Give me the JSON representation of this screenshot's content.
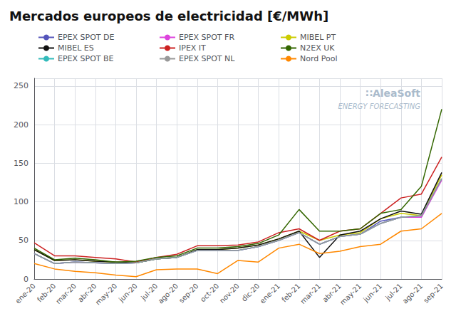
{
  "chart_data": {
    "type": "line",
    "title": "Mercados europeos de electricidad [€/MWh]",
    "categories": [
      "ene-20",
      "feb-20",
      "mar-20",
      "abr-20",
      "may-20",
      "jun-20",
      "jul-20",
      "ago-20",
      "sep-20",
      "oct-20",
      "nov-20",
      "dic-20",
      "ene-21",
      "feb-21",
      "mar-21",
      "abr-21",
      "may-21",
      "jun-21",
      "jul-21",
      "ago-21",
      "sep-21"
    ],
    "series": [
      {
        "name": "EPEX SPOT DE",
        "color": "#5555bb",
        "values": [
          33,
          20,
          22,
          21,
          20,
          21,
          26,
          28,
          37,
          37,
          37,
          42,
          50,
          60,
          45,
          55,
          58,
          75,
          80,
          80,
          130
        ]
      },
      {
        "name": "EPEX SPOT FR",
        "color": "#dd44dd",
        "values": [
          33,
          20,
          22,
          21,
          20,
          21,
          26,
          28,
          37,
          37,
          37,
          42,
          50,
          60,
          45,
          55,
          58,
          72,
          80,
          80,
          128
        ]
      },
      {
        "name": "MIBEL PT",
        "color": "#cccc00",
        "values": [
          38,
          24,
          25,
          23,
          22,
          21,
          26,
          28,
          38,
          38,
          40,
          44,
          52,
          62,
          50,
          57,
          60,
          78,
          85,
          82,
          135
        ]
      },
      {
        "name": "MIBEL ES",
        "color": "#111111",
        "values": [
          38,
          24,
          25,
          23,
          22,
          21,
          26,
          28,
          38,
          38,
          40,
          44,
          52,
          62,
          28,
          57,
          62,
          78,
          88,
          84,
          138
        ]
      },
      {
        "name": "IPEX IT",
        "color": "#cc2222",
        "values": [
          47,
          30,
          30,
          28,
          26,
          22,
          28,
          32,
          43,
          43,
          44,
          48,
          60,
          65,
          50,
          62,
          65,
          85,
          105,
          110,
          158
        ]
      },
      {
        "name": "N2EX UK",
        "color": "#336600",
        "values": [
          40,
          25,
          27,
          25,
          22,
          23,
          28,
          30,
          40,
          40,
          42,
          46,
          57,
          90,
          62,
          62,
          65,
          85,
          90,
          120,
          220
        ]
      },
      {
        "name": "EPEX SPOT BE",
        "color": "#33bbbb",
        "values": [
          33,
          20,
          22,
          21,
          20,
          21,
          26,
          28,
          37,
          37,
          37,
          42,
          50,
          60,
          45,
          55,
          58,
          72,
          80,
          82,
          130
        ]
      },
      {
        "name": "EPEX SPOT NL",
        "color": "#999999",
        "values": [
          33,
          20,
          22,
          21,
          20,
          21,
          26,
          28,
          37,
          37,
          37,
          42,
          50,
          60,
          45,
          55,
          58,
          72,
          80,
          82,
          130
        ]
      },
      {
        "name": "Nord Pool",
        "color": "#ff8800",
        "values": [
          20,
          13,
          10,
          8,
          5,
          3,
          12,
          13,
          13,
          7,
          24,
          22,
          40,
          45,
          33,
          36,
          42,
          45,
          62,
          65,
          85
        ]
      }
    ],
    "ylim": [
      0,
      260
    ],
    "yticks": [
      0,
      50,
      100,
      150,
      200,
      250
    ],
    "grid": true,
    "legend": "upper left",
    "annotations": [
      {
        "text": "∷AleaSoft",
        "color": "#aabbcc"
      },
      {
        "text": "ENERGY FORECASTING",
        "color": "#aabbcc"
      }
    ]
  }
}
